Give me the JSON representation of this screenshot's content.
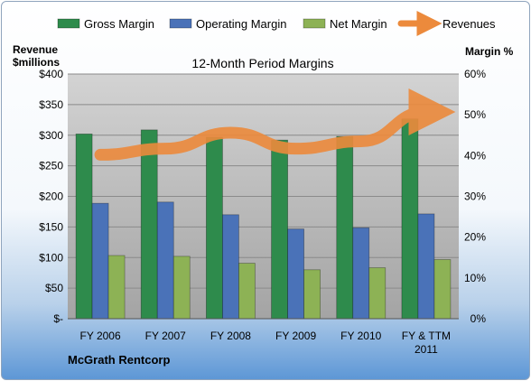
{
  "chart_data": {
    "type": "bar",
    "title": "12-Month Period Margins",
    "company": "McGrath Rentcorp",
    "categories": [
      "FY 2006",
      "FY 2007",
      "FY 2008",
      "FY 2009",
      "FY 2010",
      "FY & TTM 2011"
    ],
    "y_left": {
      "label_line1": "Revenue",
      "label_line2": "$millions",
      "ticks": [
        "$-",
        "$50",
        "$100",
        "$150",
        "$200",
        "$250",
        "$300",
        "$350",
        "$400"
      ],
      "ylim": [
        0,
        400
      ]
    },
    "y_right": {
      "label": "Margin %",
      "ticks": [
        "0%",
        "10%",
        "20%",
        "30%",
        "40%",
        "50%",
        "60%"
      ],
      "ylim": [
        0,
        60
      ]
    },
    "series": [
      {
        "name": "Gross Margin",
        "type": "bar",
        "axis": "right",
        "color": "#2e8b4c",
        "values": [
          45.3,
          46.3,
          44.5,
          43.8,
          44.7,
          49.0
        ]
      },
      {
        "name": "Operating Margin",
        "type": "bar",
        "axis": "right",
        "color": "#4a72b8",
        "values": [
          28.3,
          28.6,
          25.5,
          22.0,
          22.3,
          25.7
        ]
      },
      {
        "name": "Net Margin",
        "type": "bar",
        "axis": "right",
        "color": "#8db255",
        "values": [
          15.5,
          15.3,
          13.6,
          12.0,
          12.5,
          14.5
        ]
      },
      {
        "name": "Revenues",
        "type": "line",
        "axis": "left",
        "color": "#ec8a3c",
        "values": [
          268,
          278,
          304,
          278,
          290,
          338
        ]
      }
    ],
    "grid": true,
    "legend": "top"
  }
}
